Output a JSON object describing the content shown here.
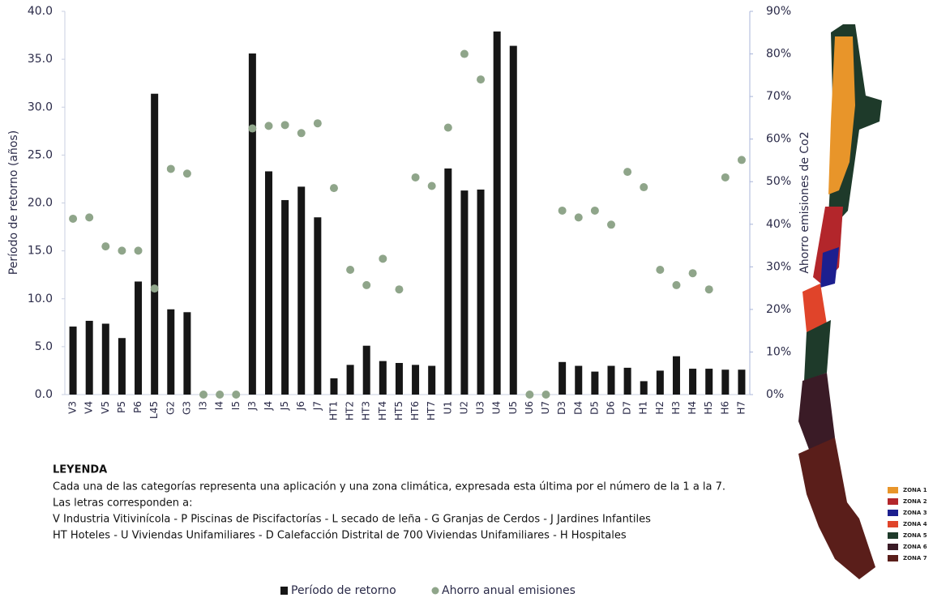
{
  "chart_data": {
    "type": "bar",
    "categories": [
      "V3",
      "V4",
      "V5",
      "P5",
      "P6",
      "L45",
      "G2",
      "G3",
      "I3",
      "I4",
      "I5",
      "J3",
      "J4",
      "J5",
      "J6",
      "J7",
      "HT1",
      "HT2",
      "HT3",
      "HT4",
      "HT5",
      "HT6",
      "HT7",
      "U1",
      "U2",
      "U3",
      "U4",
      "U5",
      "U6",
      "U7",
      "D3",
      "D4",
      "D5",
      "D6",
      "D7",
      "H1",
      "H2",
      "H3",
      "H4",
      "H5",
      "H6",
      "H7"
    ],
    "series": [
      {
        "name": "Período de retorno",
        "type": "bar",
        "color": "#161616",
        "axis": "y",
        "values": [
          7.1,
          7.7,
          7.4,
          5.9,
          11.8,
          31.4,
          8.9,
          8.6,
          0,
          0,
          0,
          35.6,
          23.3,
          20.3,
          21.7,
          18.5,
          1.7,
          3.1,
          5.1,
          3.5,
          3.3,
          3.1,
          3.0,
          23.6,
          21.3,
          21.4,
          37.9,
          36.4,
          0,
          0,
          3.4,
          3.0,
          2.4,
          3.0,
          2.8,
          1.4,
          2.5,
          4.0,
          2.7,
          2.7,
          2.6,
          2.6
        ]
      },
      {
        "name": "Ahorro anual emisiones",
        "type": "scatter",
        "color": "#8fa58a",
        "axis": "y2",
        "values": [
          41.3,
          41.6,
          34.8,
          33.8,
          33.8,
          24.9,
          53,
          51.9,
          0,
          0,
          0,
          62.5,
          63.1,
          63.3,
          61.4,
          63.7,
          48.5,
          29.3,
          25.7,
          31.9,
          24.7,
          51,
          49,
          62.7,
          80,
          74,
          null,
          null,
          0,
          0,
          43.2,
          41.6,
          43.2,
          39.9,
          52.3,
          48.7,
          29.3,
          25.7,
          28.5,
          24.7,
          51,
          55.1
        ]
      }
    ],
    "y_label": "Período de retorno (años)",
    "y2_label": "Ahorro emisiones de Co2",
    "ylim": [
      0,
      40
    ],
    "yticks": [
      {
        "value": 0,
        "label": "0.0"
      },
      {
        "value": 5,
        "label": "5.0"
      },
      {
        "value": 10,
        "label": "10.0"
      },
      {
        "value": 15,
        "label": "15.0"
      },
      {
        "value": 20,
        "label": "20.0"
      },
      {
        "value": 25,
        "label": "25.0"
      },
      {
        "value": 30,
        "label": "30.0"
      },
      {
        "value": 35,
        "label": "35.0"
      },
      {
        "value": 40,
        "label": "40.0"
      }
    ],
    "y2lim": [
      0,
      90
    ],
    "y2ticks": [
      {
        "value": 0,
        "label": "0%"
      },
      {
        "value": 10,
        "label": "10%"
      },
      {
        "value": 20,
        "label": "20%"
      },
      {
        "value": 30,
        "label": "30%"
      },
      {
        "value": 40,
        "label": "40%"
      },
      {
        "value": 50,
        "label": "50%"
      },
      {
        "value": 60,
        "label": "60%"
      },
      {
        "value": 70,
        "label": "70%"
      },
      {
        "value": 80,
        "label": "80%"
      },
      {
        "value": 90,
        "label": "90%"
      }
    ]
  },
  "notes": {
    "heading": "LEYENDA",
    "lines": [
      "Cada una de las categorías representa una aplicación y una zona climática, expresada esta última por el número de la 1 a la 7.",
      "Las letras corresponden a:",
      "V Industria Vitivinícola - P Piscinas de Piscifactorías - L secado de leña - G Granjas de Cerdos - J Jardines Infantiles",
      "HT Hoteles - U Viviendas Unifamiliares - D Calefacción Distrital de 700 Viviendas Unifamiliares - H Hospitales"
    ]
  },
  "map_legend": [
    {
      "label": "ZONA 1",
      "color": "#e8952a"
    },
    {
      "label": "ZONA 2",
      "color": "#b3262b"
    },
    {
      "label": "ZONA 3",
      "color": "#1c1f8f"
    },
    {
      "label": "ZONA 4",
      "color": "#e0442a"
    },
    {
      "label": "ZONA 5",
      "color": "#1e3a2a"
    },
    {
      "label": "ZONA 6",
      "color": "#3a1b26"
    },
    {
      "label": "ZONA 7",
      "color": "#5a1e1a"
    }
  ]
}
